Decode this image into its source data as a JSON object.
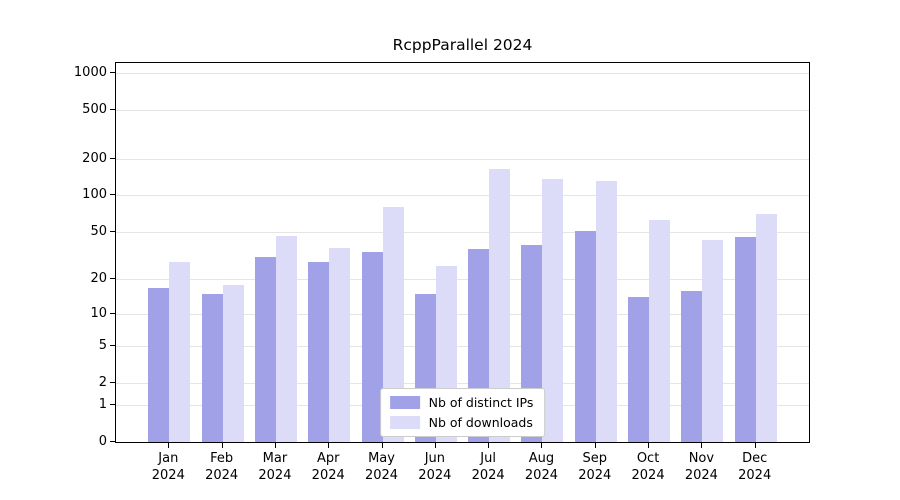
{
  "title": "RcppParallel 2024",
  "chart_data": {
    "type": "bar",
    "title": "RcppParallel 2024",
    "scale": "log1p",
    "grid": true,
    "legend_position": "lower center",
    "ylim": [
      0,
      1200
    ],
    "yticks": [
      0,
      1,
      2,
      5,
      10,
      20,
      50,
      100,
      200,
      500,
      1000
    ],
    "categories": [
      "Jan 2024",
      "Feb 2024",
      "Mar 2024",
      "Apr 2024",
      "May 2024",
      "Jun 2024",
      "Jul 2024",
      "Aug 2024",
      "Sep 2024",
      "Oct 2024",
      "Nov 2024",
      "Dec 2024"
    ],
    "series": [
      {
        "name": "Nb of distinct IPs",
        "color": "#a1a1e8",
        "values": [
          17,
          15,
          31,
          28,
          34,
          15,
          36,
          39,
          51,
          14,
          16,
          45
        ]
      },
      {
        "name": "Nb of downloads",
        "color": "#dcdcf8",
        "values": [
          28,
          18,
          46,
          37,
          80,
          26,
          165,
          135,
          130,
          63,
          43,
          70
        ]
      }
    ]
  }
}
